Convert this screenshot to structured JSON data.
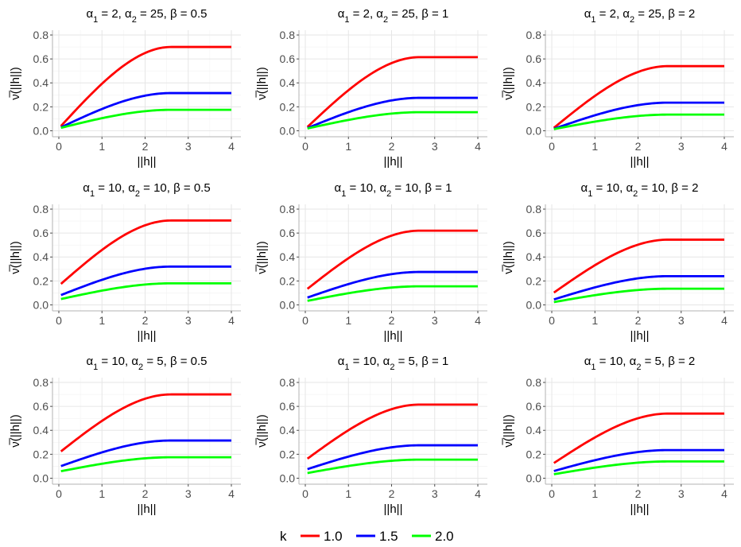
{
  "chart_data": {
    "type": "line",
    "legend": {
      "title": "k",
      "placement": "bottom",
      "entries": [
        {
          "label": "1.0",
          "color": "#ff0000"
        },
        {
          "label": "1.5",
          "color": "#0000ff"
        },
        {
          "label": "2.0",
          "color": "#00ff00"
        }
      ]
    },
    "xlabel": "||h||",
    "ylabel": "ν̅(||h||)",
    "xlim": [
      0,
      4
    ],
    "ylim": [
      0,
      0.8
    ],
    "xticks": [
      "0",
      "1",
      "2",
      "3",
      "4"
    ],
    "yticks": [
      "0.0",
      "0.2",
      "0.4",
      "0.6",
      "0.8"
    ],
    "grid": true,
    "panels": [
      {
        "alpha1": "2",
        "alpha2": "25",
        "beta": "0.5",
        "start": [
          0.02,
          0.02,
          0.02
        ],
        "plateau": [
          0.7,
          0.315,
          0.175
        ],
        "range": 2.6
      },
      {
        "alpha1": "2",
        "alpha2": "25",
        "beta": "1",
        "start": [
          0.015,
          0.015,
          0.015
        ],
        "plateau": [
          0.615,
          0.275,
          0.155
        ],
        "range": 2.65
      },
      {
        "alpha1": "2",
        "alpha2": "25",
        "beta": "2",
        "start": [
          0.01,
          0.01,
          0.01
        ],
        "plateau": [
          0.54,
          0.235,
          0.135
        ],
        "range": 2.7
      },
      {
        "alpha1": "10",
        "alpha2": "10",
        "beta": "0.5",
        "start": [
          0.16,
          0.075,
          0.045
        ],
        "plateau": [
          0.705,
          0.32,
          0.18
        ],
        "range": 2.6
      },
      {
        "alpha1": "10",
        "alpha2": "10",
        "beta": "1",
        "start": [
          0.12,
          0.055,
          0.03
        ],
        "plateau": [
          0.62,
          0.275,
          0.155
        ],
        "range": 2.65
      },
      {
        "alpha1": "10",
        "alpha2": "10",
        "beta": "2",
        "start": [
          0.09,
          0.04,
          0.02
        ],
        "plateau": [
          0.545,
          0.24,
          0.135
        ],
        "range": 2.7
      },
      {
        "alpha1": "10",
        "alpha2": "5",
        "beta": "0.5",
        "start": [
          0.21,
          0.095,
          0.055
        ],
        "plateau": [
          0.7,
          0.315,
          0.175
        ],
        "range": 2.6
      },
      {
        "alpha1": "10",
        "alpha2": "5",
        "beta": "1",
        "start": [
          0.15,
          0.07,
          0.04
        ],
        "plateau": [
          0.615,
          0.275,
          0.155
        ],
        "range": 2.65
      },
      {
        "alpha1": "10",
        "alpha2": "5",
        "beta": "2",
        "start": [
          0.115,
          0.055,
          0.03
        ],
        "plateau": [
          0.54,
          0.235,
          0.14
        ],
        "range": 2.7
      }
    ]
  }
}
